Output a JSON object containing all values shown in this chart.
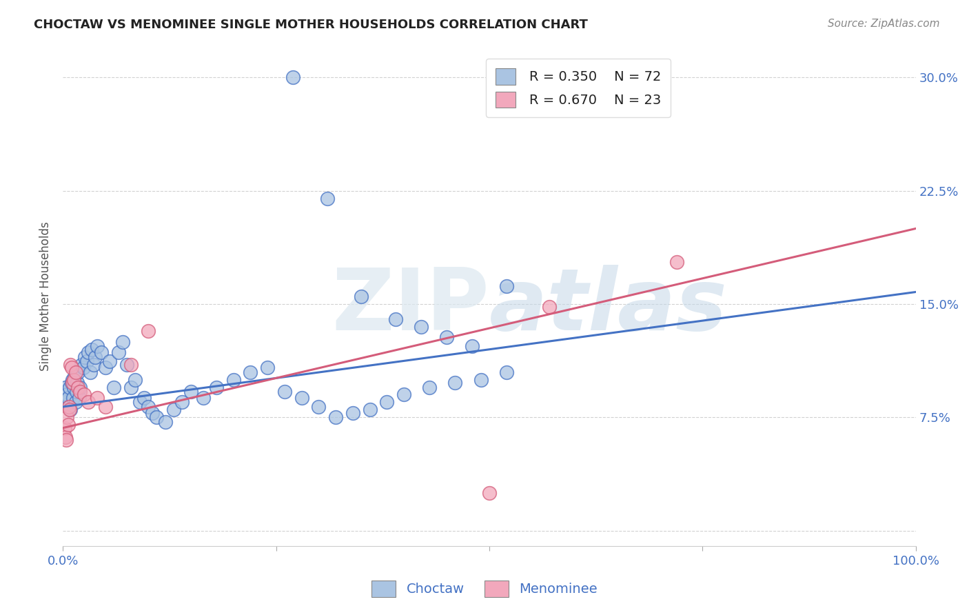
{
  "title": "CHOCTAW VS MENOMINEE SINGLE MOTHER HOUSEHOLDS CORRELATION CHART",
  "source": "Source: ZipAtlas.com",
  "ylabel": "Single Mother Households",
  "watermark_text": "ZIP",
  "watermark_text2": "atlas",
  "choctaw_R": 0.35,
  "choctaw_N": 72,
  "menominee_R": 0.67,
  "menominee_N": 23,
  "choctaw_color": "#aac4e2",
  "menominee_color": "#f2a8bc",
  "choctaw_line_color": "#4472c4",
  "menominee_line_color": "#d45c7a",
  "title_color": "#222222",
  "axis_label_color": "#4472c4",
  "legend_text_color": "#222222",
  "grid_color": "#cccccc",
  "background_color": "#ffffff",
  "choctaw_x": [
    0.002,
    0.003,
    0.004,
    0.005,
    0.006,
    0.007,
    0.008,
    0.009,
    0.01,
    0.011,
    0.012,
    0.013,
    0.014,
    0.015,
    0.016,
    0.017,
    0.018,
    0.019,
    0.02,
    0.022,
    0.024,
    0.026,
    0.028,
    0.03,
    0.032,
    0.034,
    0.036,
    0.038,
    0.04,
    0.045,
    0.05,
    0.055,
    0.06,
    0.065,
    0.07,
    0.075,
    0.08,
    0.085,
    0.09,
    0.095,
    0.1,
    0.105,
    0.11,
    0.12,
    0.13,
    0.14,
    0.15,
    0.165,
    0.18,
    0.2,
    0.22,
    0.24,
    0.26,
    0.28,
    0.3,
    0.32,
    0.34,
    0.36,
    0.38,
    0.4,
    0.43,
    0.46,
    0.49,
    0.52,
    0.27,
    0.31,
    0.35,
    0.39,
    0.42,
    0.45,
    0.48,
    0.52
  ],
  "choctaw_y": [
    0.092,
    0.095,
    0.085,
    0.09,
    0.088,
    0.082,
    0.095,
    0.08,
    0.098,
    0.1,
    0.088,
    0.095,
    0.102,
    0.085,
    0.092,
    0.098,
    0.105,
    0.088,
    0.095,
    0.11,
    0.108,
    0.115,
    0.112,
    0.118,
    0.105,
    0.12,
    0.11,
    0.115,
    0.122,
    0.118,
    0.108,
    0.112,
    0.095,
    0.118,
    0.125,
    0.11,
    0.095,
    0.1,
    0.085,
    0.088,
    0.082,
    0.078,
    0.075,
    0.072,
    0.08,
    0.085,
    0.092,
    0.088,
    0.095,
    0.1,
    0.105,
    0.108,
    0.092,
    0.088,
    0.082,
    0.075,
    0.078,
    0.08,
    0.085,
    0.09,
    0.095,
    0.098,
    0.1,
    0.105,
    0.3,
    0.22,
    0.155,
    0.14,
    0.135,
    0.128,
    0.122,
    0.162
  ],
  "menominee_x": [
    0.002,
    0.003,
    0.004,
    0.005,
    0.006,
    0.007,
    0.008,
    0.009,
    0.01,
    0.011,
    0.013,
    0.015,
    0.018,
    0.02,
    0.025,
    0.03,
    0.04,
    0.05,
    0.08,
    0.1,
    0.5,
    0.57,
    0.72
  ],
  "menominee_y": [
    0.068,
    0.062,
    0.06,
    0.075,
    0.07,
    0.082,
    0.08,
    0.11,
    0.108,
    0.098,
    0.1,
    0.105,
    0.095,
    0.092,
    0.09,
    0.085,
    0.088,
    0.082,
    0.11,
    0.132,
    0.025,
    0.148,
    0.178
  ],
  "xlim": [
    0.0,
    1.0
  ],
  "ylim": [
    -0.01,
    0.32
  ],
  "yticks": [
    0.0,
    0.075,
    0.15,
    0.225,
    0.3
  ],
  "xtick_positions": [
    0.0,
    0.25,
    0.5,
    0.75,
    1.0
  ],
  "choctaw_line_x": [
    0.0,
    1.0
  ],
  "choctaw_line_y": [
    0.082,
    0.158
  ],
  "menominee_line_x": [
    0.0,
    1.0
  ],
  "menominee_line_y": [
    0.068,
    0.2
  ]
}
